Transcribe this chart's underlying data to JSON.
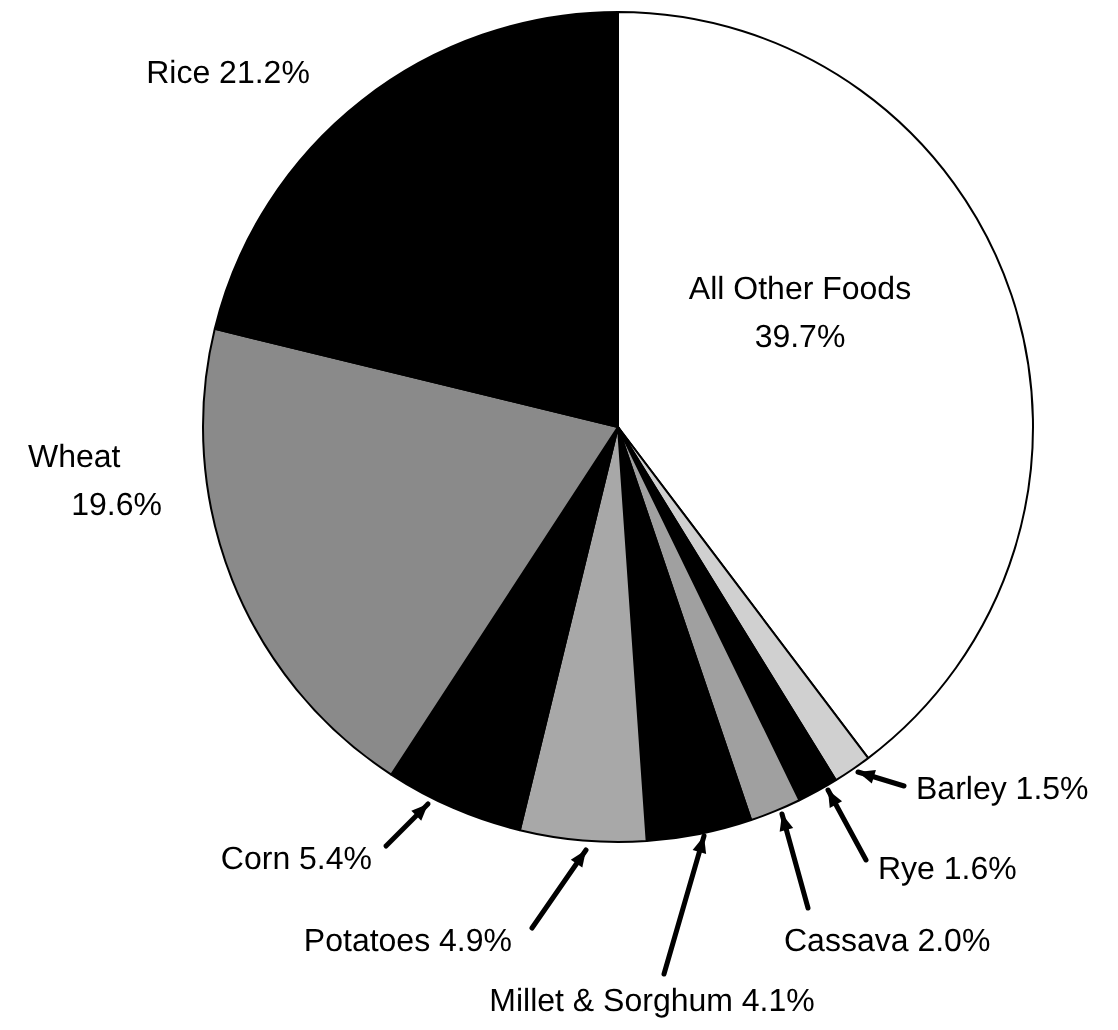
{
  "chart_data": {
    "type": "pie",
    "categories": [
      "All Other Foods",
      "Barley",
      "Rye",
      "Cassava",
      "Millet & Sorghum",
      "Potatoes",
      "Corn",
      "Wheat",
      "Rice"
    ],
    "values": [
      39.7,
      1.5,
      1.6,
      2.0,
      4.1,
      4.9,
      5.4,
      19.6,
      21.2
    ],
    "value_labels": [
      "39.7%",
      "1.5%",
      "1.6%",
      "2.0%",
      "4.1%",
      "4.9%",
      "5.4%",
      "19.6%",
      "21.2%"
    ],
    "colors": [
      "#ffffff",
      "#d0d0d0",
      "#000000",
      "#a0a0a0",
      "#000000",
      "#a8a8a8",
      "#000000",
      "#8a8a8a",
      "#000000"
    ],
    "legend": false
  }
}
